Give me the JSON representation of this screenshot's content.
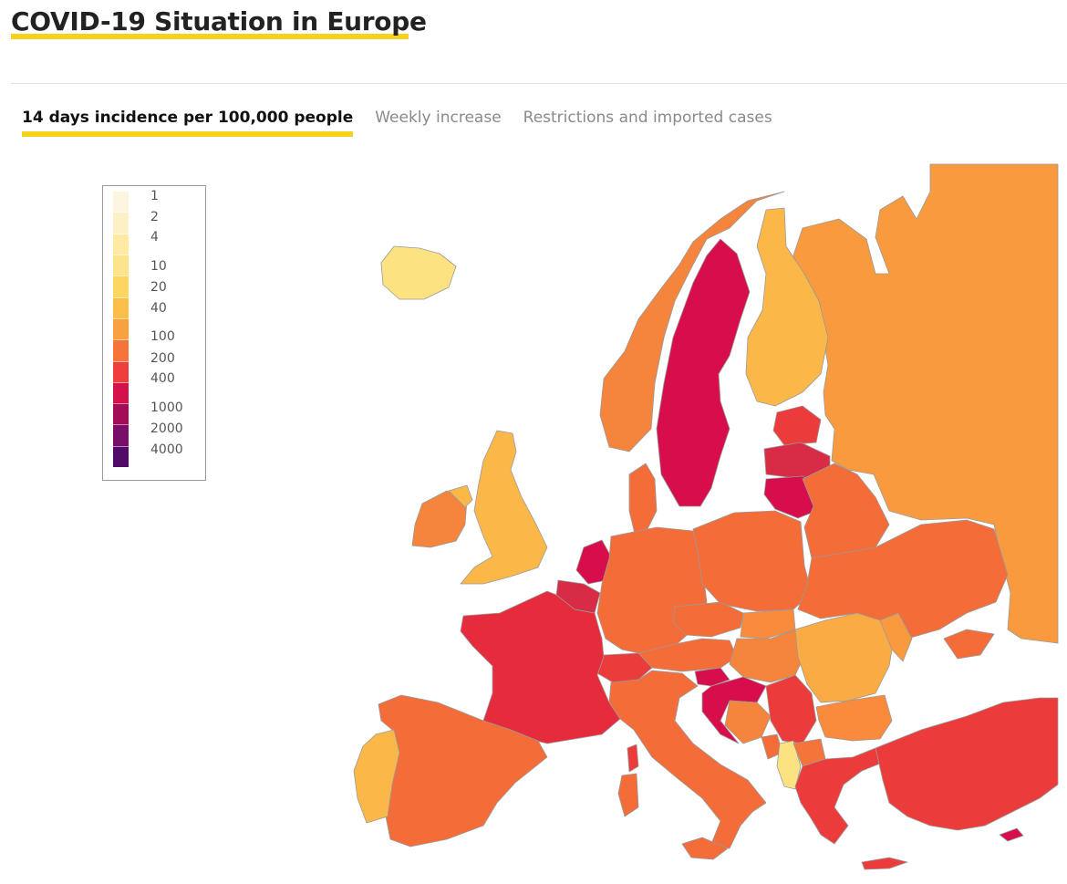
{
  "header": {
    "title": "COVID-19 Situation in Europe"
  },
  "tabs": [
    {
      "label": "14 days incidence per 100,000 people",
      "active": true
    },
    {
      "label": "Weekly increase",
      "active": false
    },
    {
      "label": "Restrictions and imported cases",
      "active": false
    }
  ],
  "legend": {
    "labels": [
      "1",
      "2",
      "4",
      "10",
      "20",
      "40",
      "100",
      "200",
      "400",
      "1000",
      "2000",
      "4000"
    ],
    "colors": [
      "#fdf6df",
      "#fef0c6",
      "#feeaa3",
      "#fde48c",
      "#fdd662",
      "#fbbf49",
      "#f9a03f",
      "#f5743a",
      "#ee3d3a",
      "#d4114a",
      "#a30d58",
      "#7a0f6a",
      "#500a68"
    ]
  },
  "colors": {
    "accent_underline": "#f5d21b",
    "very_high": "#d80d4b",
    "high": "#ec3b3b",
    "elevated": "#f46d39",
    "medium": "#fa9a3f",
    "moderate": "#fbb849",
    "low": "#fde282"
  }
}
